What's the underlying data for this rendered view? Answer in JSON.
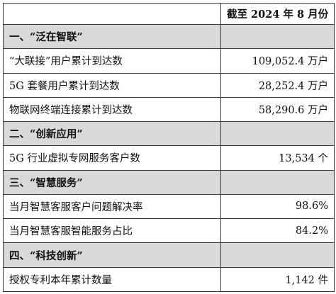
{
  "table": {
    "header": {
      "label": "",
      "period": "截至 2024 年 8 月份"
    },
    "sections": [
      {
        "title": "一、“泛在智联”",
        "rows": [
          {
            "label": "“大联接”用户累计到达数",
            "value": "109,052.4 万户",
            "indent": false
          },
          {
            "label": "5G 套餐用户累计到达数",
            "value": "28,252.4 万户",
            "indent": true
          },
          {
            "label": "物联网终端连接累计到达数",
            "value": "58,290.6 万户",
            "indent": true
          }
        ]
      },
      {
        "title": "二、“创新应用”",
        "rows": [
          {
            "label": "5G 行业虚拟专网服务客户数",
            "value": "13,534 个",
            "indent": false
          }
        ]
      },
      {
        "title": "三、“智慧服务”",
        "rows": [
          {
            "label": "当月智慧客服客户问题解决率",
            "value": "98.6%",
            "indent": false
          },
          {
            "label": "当月智慧客服智能服务占比",
            "value": "84.2%",
            "indent": false
          }
        ]
      },
      {
        "title": "四、“科技创新”",
        "rows": [
          {
            "label": "授权专利本年累计数量",
            "value": "1,142 件",
            "indent": false
          }
        ]
      }
    ]
  }
}
